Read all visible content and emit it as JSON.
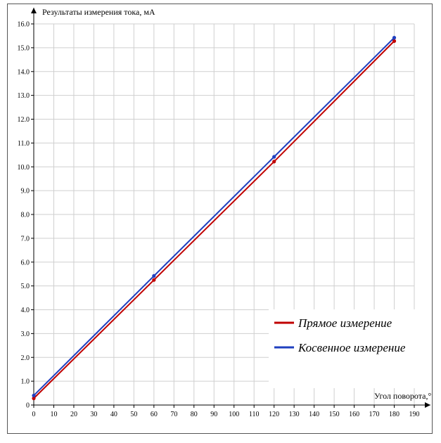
{
  "chart_data": {
    "type": "line",
    "ylabel": "Результаты измерения тока, мА",
    "xlabel": "Угол поворота,°",
    "x_ticks": [
      "0",
      "10",
      "20",
      "30",
      "40",
      "50",
      "60",
      "70",
      "80",
      "90",
      "100",
      "110",
      "120",
      "130",
      "140",
      "150",
      "160",
      "170",
      "180",
      "190"
    ],
    "y_ticks": [
      "0",
      "1.0",
      "2.0",
      "3.0",
      "4.0",
      "5.0",
      "6.0",
      "7.0",
      "8.0",
      "9.0",
      "10.0",
      "11.0",
      "12.0",
      "13.0",
      "14.0",
      "15.0",
      "16.0"
    ],
    "xlim": [
      0,
      190
    ],
    "ylim": [
      0,
      16
    ],
    "grid": true,
    "legend_position": "bottom-right",
    "series": [
      {
        "name": "Прямое измерение",
        "color": "#c00000",
        "x": [
          0,
          60,
          120,
          180
        ],
        "y": [
          0.28,
          5.25,
          10.22,
          15.28
        ]
      },
      {
        "name": "Косвенное измерение",
        "color": "#1f3fbf",
        "x": [
          0,
          60,
          120,
          180
        ],
        "y": [
          0.4,
          5.42,
          10.42,
          15.42
        ]
      }
    ]
  }
}
